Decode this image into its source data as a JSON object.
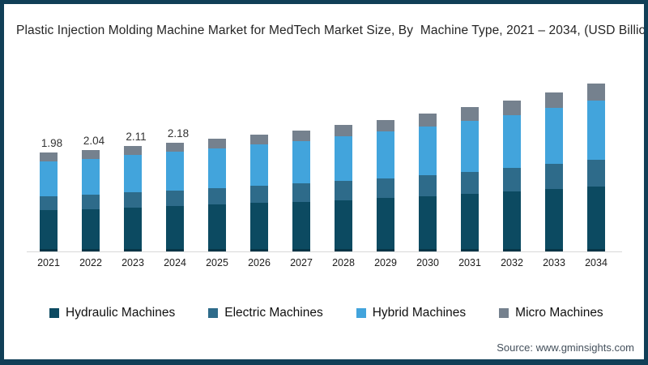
{
  "chart_data": {
    "type": "bar",
    "stacked": true,
    "title": "Plastic Injection Molding Machine Market for MedTech Market Size, By  Machine Type, 2021 – 2034, (USD Billion)",
    "categories": [
      "2021",
      "2022",
      "2023",
      "2024",
      "2025",
      "2026",
      "2027",
      "2028",
      "2029",
      "2030",
      "2031",
      "2032",
      "2033",
      "2034"
    ],
    "series": [
      {
        "name": "Hydraulic Machines",
        "color": "#0c4a61",
        "values": [
          0.83,
          0.85,
          0.88,
          0.91,
          0.94,
          0.97,
          1.0,
          1.03,
          1.07,
          1.11,
          1.15,
          1.2,
          1.25,
          1.3
        ]
      },
      {
        "name": "Electric Machines",
        "color": "#2e6b8a",
        "values": [
          0.28,
          0.29,
          0.3,
          0.31,
          0.33,
          0.34,
          0.36,
          0.38,
          0.4,
          0.42,
          0.44,
          0.47,
          0.5,
          0.53
        ]
      },
      {
        "name": "Hybrid Machines",
        "color": "#42a4dc",
        "values": [
          0.7,
          0.72,
          0.75,
          0.78,
          0.8,
          0.83,
          0.86,
          0.9,
          0.94,
          0.98,
          1.03,
          1.07,
          1.13,
          1.19
        ]
      },
      {
        "name": "Micro Machines",
        "color": "#75818e",
        "values": [
          0.17,
          0.18,
          0.18,
          0.18,
          0.19,
          0.2,
          0.21,
          0.22,
          0.23,
          0.25,
          0.27,
          0.29,
          0.31,
          0.35
        ]
      }
    ],
    "bar_labels": [
      "1.98",
      "2.04",
      "2.11",
      "2.18",
      "",
      "",
      "",
      "",
      "",
      "",
      "",
      "",
      "",
      ""
    ],
    "grid": false,
    "legend_position": "bottom"
  },
  "footer": {
    "source": "Source: www.gminsights.com"
  },
  "style": {
    "frame_color": "#113f57",
    "axis_color": "#d8d8d8",
    "title_color": "#252525"
  }
}
